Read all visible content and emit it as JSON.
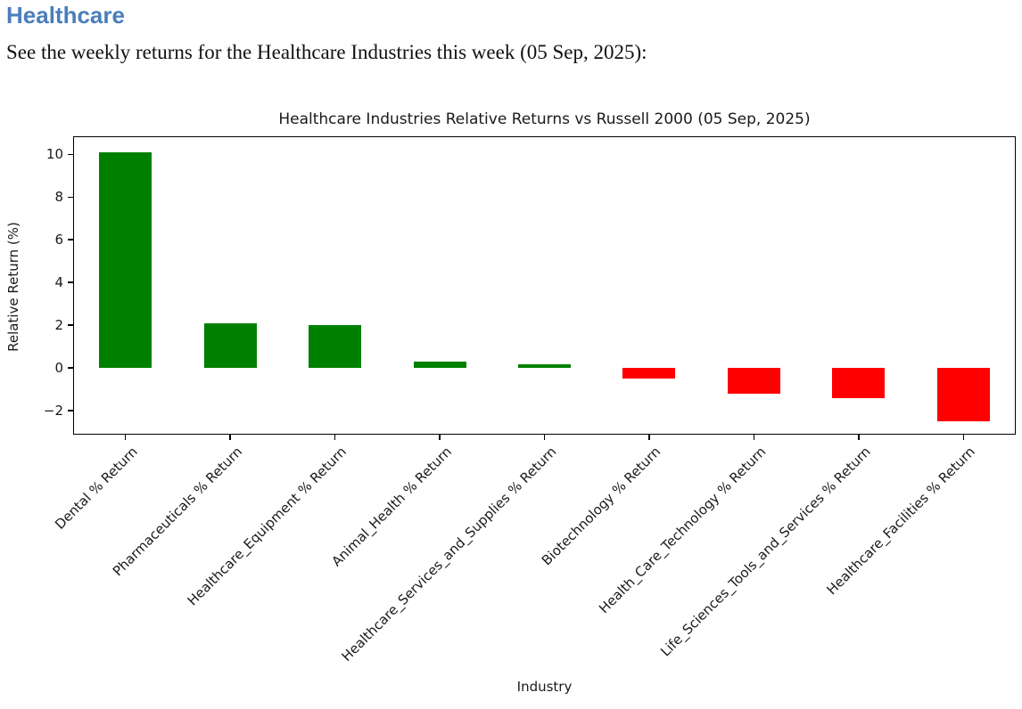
{
  "page": {
    "heading": "Healthcare",
    "heading_color": "#4A7EBB",
    "intro": "See the weekly returns for the Healthcare Industries this week (05 Sep, 2025):"
  },
  "chart_data": {
    "type": "bar",
    "title": "Healthcare Industries Relative Returns vs Russell 2000 (05 Sep, 2025)",
    "xlabel": "Industry",
    "ylabel": "Relative Return (%)",
    "categories": [
      "Dental % Return",
      "Pharmaceuticals % Return",
      "Healthcare_Equipment % Return",
      "Animal_Health % Return",
      "Healthcare_Services_and_Supplies % Return",
      "Biotechnology % Return",
      "Health_Care_Technology % Return",
      "Life_Sciences_Tools_and_Services % Return",
      "Healthcare_Facilities % Return"
    ],
    "values": [
      10.1,
      2.1,
      2.0,
      0.3,
      0.15,
      -0.5,
      -1.2,
      -1.4,
      -2.5
    ],
    "yticks": [
      10,
      8,
      6,
      4,
      2,
      0,
      -2
    ],
    "ylim": [
      -3.13,
      10.85
    ],
    "xtick_rotation_deg": 45,
    "grid": false,
    "legend": "none",
    "positive_color": "#008000",
    "negative_color": "#FF0000"
  }
}
